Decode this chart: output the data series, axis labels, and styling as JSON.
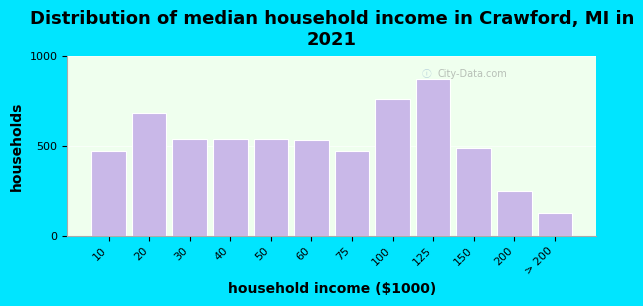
{
  "title": "Distribution of median household income in Crawford, MI in\n2021",
  "xlabel": "household income ($1000)",
  "ylabel": "households",
  "categories": [
    "10",
    "20",
    "30",
    "40",
    "50",
    "60",
    "75",
    "100",
    "125",
    "150",
    "200",
    "> 200"
  ],
  "values": [
    470,
    680,
    540,
    540,
    535,
    530,
    470,
    760,
    870,
    490,
    250,
    125
  ],
  "bar_color": "#c9b8e8",
  "bar_edgecolor": "#ffffff",
  "bg_outer": "#00e5ff",
  "bg_plot": "#efffee",
  "ylim": [
    0,
    1000
  ],
  "yticks": [
    0,
    500,
    1000
  ],
  "title_fontsize": 13,
  "axis_label_fontsize": 10,
  "tick_fontsize": 8,
  "watermark": "City-Data.com"
}
